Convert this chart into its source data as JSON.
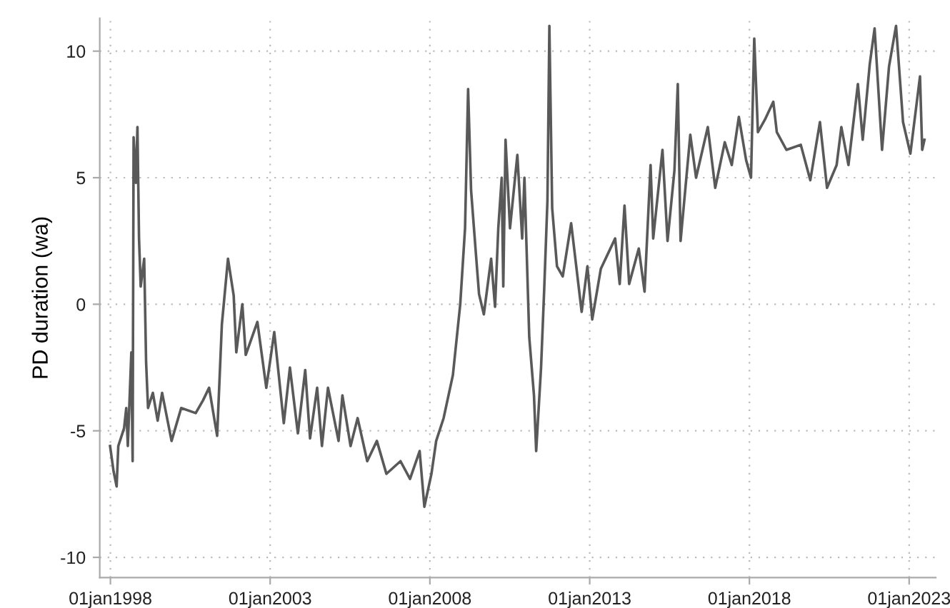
{
  "chart_data": {
    "type": "line",
    "ylabel": "PD duration (wa)",
    "x": [
      "1997-12-28",
      "1998-02-06",
      "1998-03-13",
      "1998-04-01",
      "1998-06-06",
      "1998-07-01",
      "1998-07-19",
      "1998-08-28",
      "1998-09-12",
      "1998-09-23",
      "1998-10-19",
      "1998-11-06",
      "1998-11-24",
      "1998-12-13",
      "1999-01-22",
      "1999-02-13",
      "1999-03-07",
      "1999-05-01",
      "1999-06-25",
      "1999-08-15",
      "1999-12-01",
      "2000-03-20",
      "2000-09-02",
      "2000-11-24",
      "2001-02-02",
      "2001-05-05",
      "2001-06-28",
      "2001-09-06",
      "2001-11-10",
      "2001-12-10",
      "2002-02-17",
      "2002-03-28",
      "2002-08-08",
      "2002-11-18",
      "2003-02-17",
      "2003-06-06",
      "2003-08-15",
      "2003-11-14",
      "2004-02-06",
      "2004-04-01",
      "2004-06-21",
      "2004-08-15",
      "2004-10-23",
      "2005-02-21",
      "2005-04-06",
      "2005-07-08",
      "2005-09-27",
      "2006-01-15",
      "2006-05-05",
      "2006-08-22",
      "2007-01-30",
      "2007-05-19",
      "2007-09-06",
      "2007-10-30",
      "2008-01-19",
      "2008-03-13",
      "2008-06-06",
      "2008-09-20",
      "2008-12-13",
      "2009-02-06",
      "2009-03-13",
      "2009-04-16",
      "2009-06-10",
      "2009-07-16",
      "2009-09-09",
      "2009-12-01",
      "2010-01-15",
      "2010-02-21",
      "2010-04-01",
      "2010-04-19",
      "2010-05-15",
      "2010-07-05",
      "2010-09-27",
      "2010-11-21",
      "2010-12-17",
      "2011-02-10",
      "2011-04-05",
      "2011-04-30",
      "2011-06-25",
      "2011-07-31",
      "2011-09-06",
      "2011-09-28",
      "2011-10-30",
      "2011-12-24",
      "2012-02-28",
      "2012-06-03",
      "2012-10-01",
      "2012-12-06",
      "2013-01-30",
      "2013-05-08",
      "2013-10-19",
      "2013-12-10",
      "2014-02-03",
      "2014-03-28",
      "2014-07-16",
      "2014-09-20",
      "2014-11-28",
      "2014-12-28",
      "2015-04-13",
      "2015-06-10",
      "2015-08-28",
      "2015-10-05",
      "2015-11-06",
      "2016-02-25",
      "2016-05-01",
      "2016-09-12",
      "2016-12-06",
      "2017-03-25",
      "2017-06-13",
      "2017-09-02",
      "2017-11-24",
      "2018-01-19",
      "2018-02-25",
      "2018-04-08",
      "2018-06-28",
      "2018-10-01",
      "2018-11-10",
      "2019-02-28",
      "2019-08-11",
      "2019-11-28",
      "2020-03-17",
      "2020-06-06",
      "2020-09-24",
      "2020-11-17",
      "2021-02-06",
      "2021-05-25",
      "2021-07-19",
      "2021-10-08",
      "2021-12-02",
      "2022-02-25",
      "2022-05-16",
      "2022-08-04",
      "2022-10-23",
      "2023-01-15",
      "2023-05-05",
      "2023-05-30",
      "2023-06-25"
    ],
    "series": [
      {
        "color": "#595959",
        "values": [
          -5.6,
          -6.6,
          -7.2,
          -5.6,
          -4.9,
          -4.1,
          -5.6,
          -1.9,
          -6.2,
          6.6,
          4.8,
          7.0,
          2.6,
          0.7,
          1.8,
          -2.3,
          -4.1,
          -3.5,
          -4.6,
          -3.5,
          -5.4,
          -4.1,
          -4.3,
          -3.8,
          -3.3,
          -5.2,
          -0.8,
          1.8,
          0.35,
          -1.9,
          0,
          -2.0,
          -0.7,
          -3.3,
          -1.1,
          -4.7,
          -2.5,
          -5.1,
          -2.6,
          -5.3,
          -3.3,
          -5.6,
          -3.3,
          -5.4,
          -3.6,
          -5.6,
          -4.5,
          -6.2,
          -5.4,
          -6.7,
          -6.2,
          -6.9,
          -5.8,
          -8.0,
          -6.7,
          -5.4,
          -4.5,
          -2.8,
          0,
          3.0,
          8.5,
          4.5,
          2.0,
          0.4,
          -0.4,
          1.8,
          -0.1,
          3.0,
          5.0,
          0.7,
          6.5,
          3.0,
          5.9,
          2.6,
          5.0,
          -1.3,
          -3.6,
          -5.8,
          -2.5,
          0.6,
          4.1,
          11.0,
          3.8,
          1.5,
          1.1,
          3.2,
          -0.3,
          1.5,
          -0.6,
          1.4,
          2.6,
          0.8,
          3.9,
          0.8,
          2.2,
          0.5,
          5.5,
          2.6,
          6.1,
          2.5,
          5.3,
          8.7,
          2.5,
          6.7,
          5.0,
          7.0,
          4.6,
          6.4,
          5.5,
          7.4,
          5.7,
          5.0,
          10.5,
          6.8,
          7.3,
          8.0,
          6.8,
          6.1,
          6.3,
          4.9,
          7.2,
          4.6,
          5.5,
          7.0,
          5.5,
          8.7,
          6.5,
          9.5,
          10.9,
          6.1,
          9.4,
          11.0,
          7.2,
          5.95,
          9.0,
          6.1,
          6.5
        ]
      }
    ],
    "xlim": [
      "1997-09-01",
      "2023-11-01"
    ],
    "xticks": [
      {
        "value": "1998-01-01",
        "label": "01jan1998"
      },
      {
        "value": "2003-01-01",
        "label": "01jan2003"
      },
      {
        "value": "2008-01-01",
        "label": "01jan2008"
      },
      {
        "value": "2013-01-01",
        "label": "01jan2013"
      },
      {
        "value": "2018-01-01",
        "label": "01jan2018"
      },
      {
        "value": "2023-01-01",
        "label": "01jan2023"
      }
    ],
    "ylim": [
      -10.8,
      11.3
    ],
    "yticks": [
      -10,
      -5,
      0,
      5,
      10
    ],
    "grid": true,
    "marker": "none",
    "line_style": "solid",
    "legend": false
  }
}
